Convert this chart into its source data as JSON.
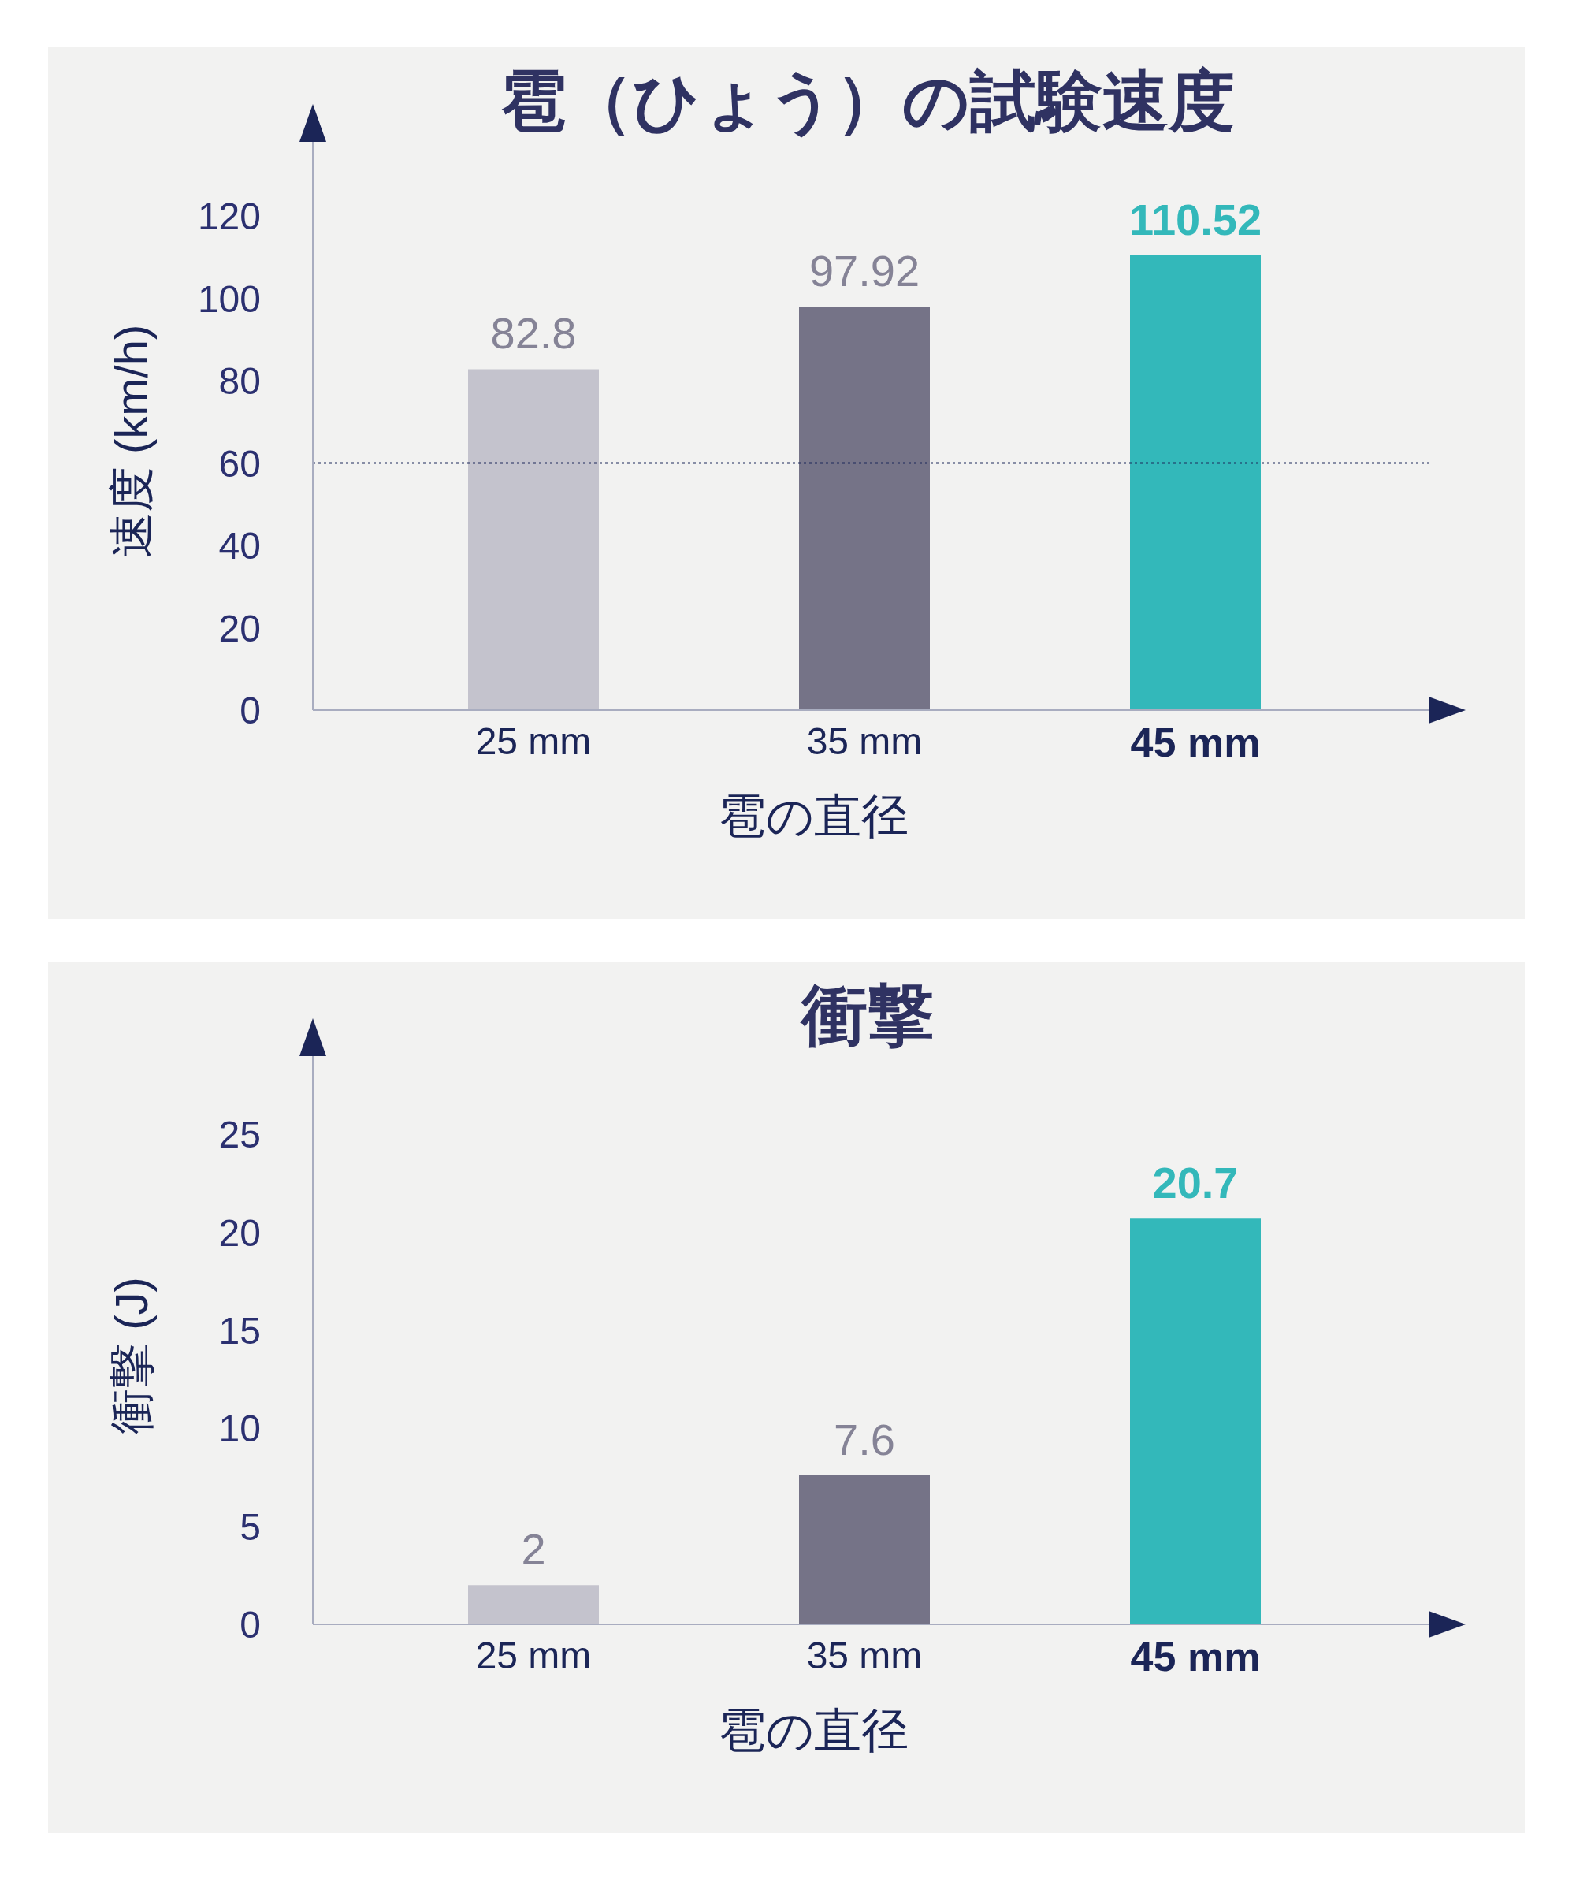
{
  "chart_data": [
    {
      "type": "bar",
      "title": "雹（ひょう）の試験速度",
      "xlabel": "雹の直径",
      "ylabel": "速度 (km/h)",
      "categories": [
        "25 mm",
        "35 mm",
        "45 mm"
      ],
      "values": [
        82.8,
        97.92,
        110.52
      ],
      "colors": [
        "#c4c3cd",
        "#757387",
        "#33b8ba"
      ],
      "ylim": [
        0,
        138
      ],
      "yticks": [
        0,
        20,
        40,
        60,
        80,
        100,
        120
      ],
      "data_labels": true,
      "ref_lines": [
        {
          "axis": "y",
          "value": 60,
          "color": "#1f2a5c",
          "line_style": "dotted"
        }
      ]
    },
    {
      "type": "bar",
      "title": "衝撃",
      "xlabel": "雹の直径",
      "ylabel": "衝撃 (J)",
      "categories": [
        "25 mm",
        "35 mm",
        "45 mm"
      ],
      "values": [
        2,
        7.6,
        20.7
      ],
      "colors": [
        "#c4c3cd",
        "#757387",
        "#33b8ba"
      ],
      "ylim": [
        0,
        29
      ],
      "yticks": [
        0,
        5,
        10,
        15,
        20,
        25
      ],
      "data_labels": true
    }
  ]
}
